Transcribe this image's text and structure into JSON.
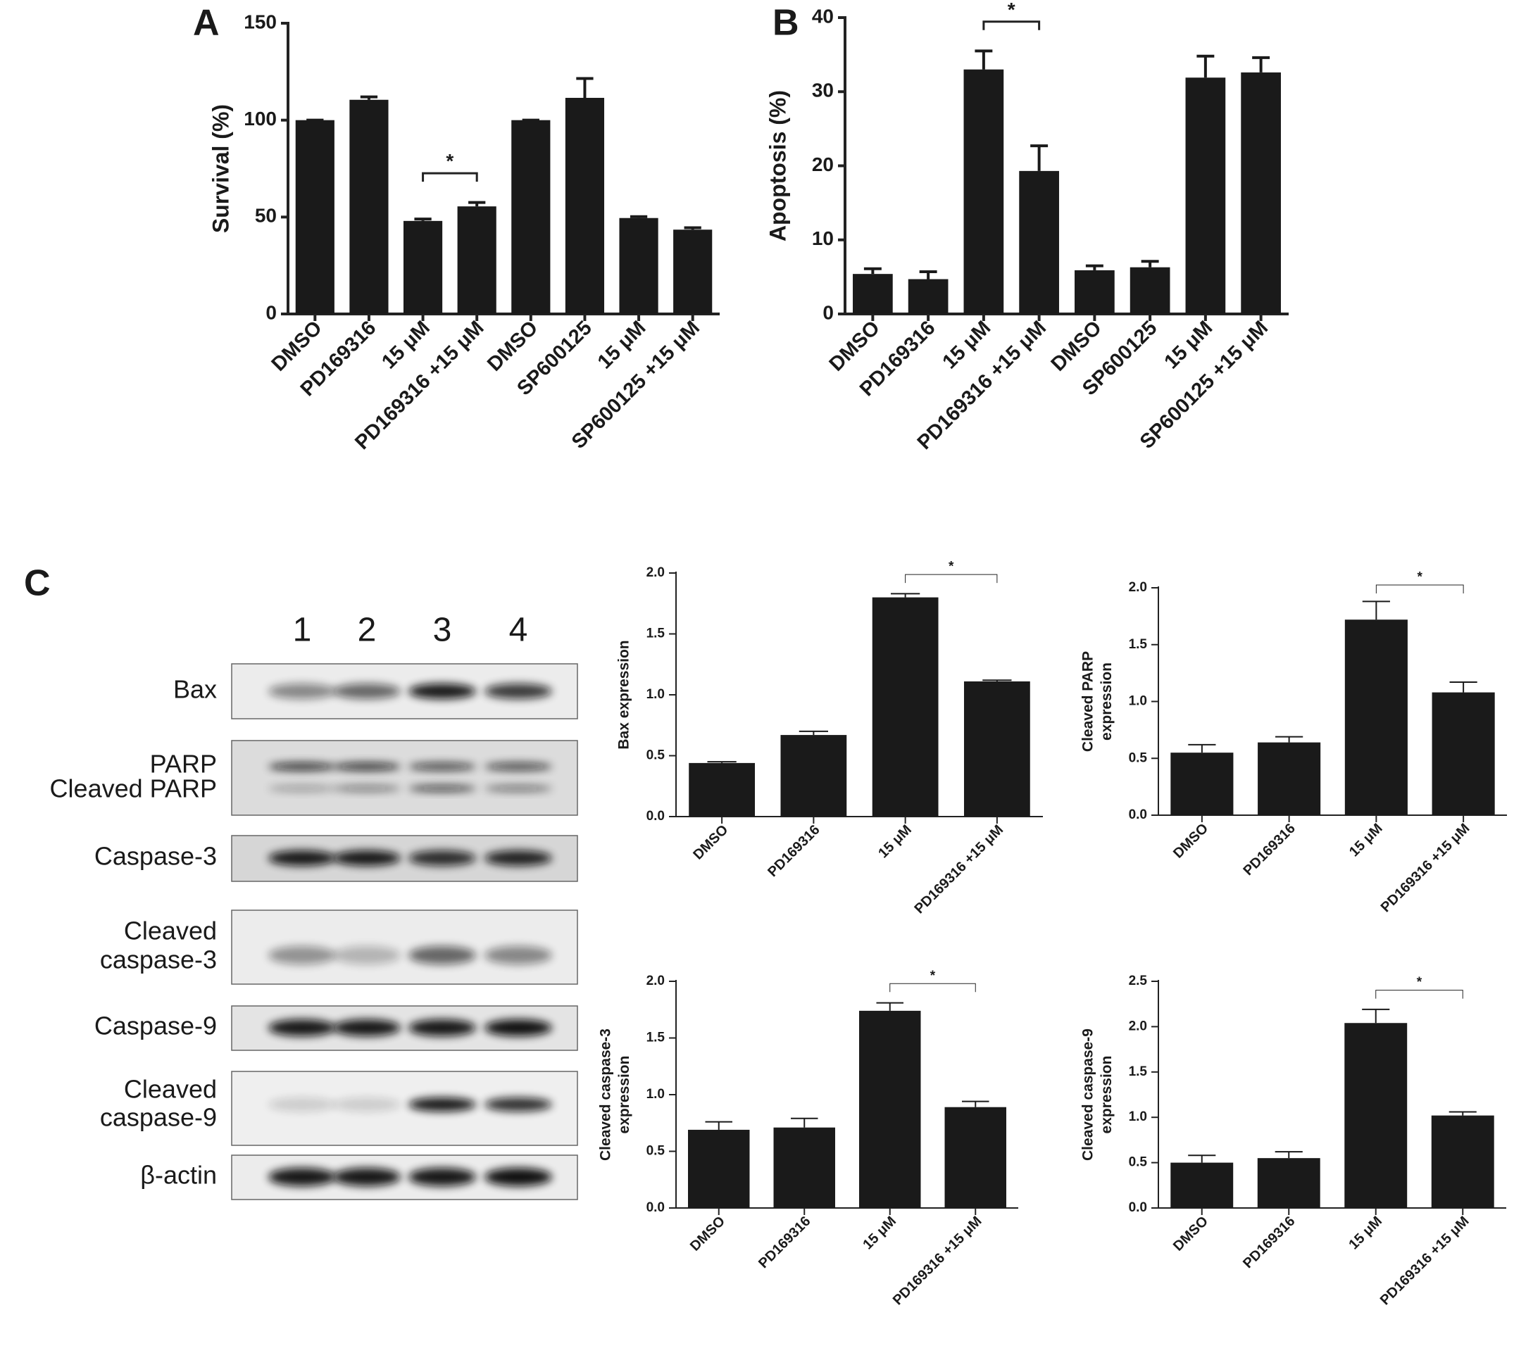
{
  "panel_labels": [
    "A",
    "B",
    "C"
  ],
  "blot": {
    "lanes": [
      "1",
      "2",
      "3",
      "4"
    ],
    "rows": [
      {
        "label": [
          "Bax"
        ]
      },
      {
        "label": [
          "PARP",
          "Cleaved PARP"
        ]
      },
      {
        "label": [
          "Caspase-3"
        ]
      },
      {
        "label": [
          "Cleaved",
          "caspase-3"
        ]
      },
      {
        "label": [
          "Caspase-9"
        ]
      },
      {
        "label": [
          "Cleaved",
          "caspase-9"
        ]
      },
      {
        "label": [
          "β-actin"
        ]
      }
    ]
  },
  "chart_data": [
    {
      "type": "bar",
      "ylabel": "Survival (%)",
      "color": "#1a1a1a",
      "categories": [
        "DMSO",
        "PD169316",
        "15 μM",
        "PD169316 +15 μM",
        "DMSO",
        "SP600125",
        "15 μM",
        "SP600125 +15 μM"
      ],
      "values": [
        100,
        110.5,
        48,
        55.5,
        100,
        111.5,
        49.5,
        43.5
      ],
      "errors": [
        0,
        1.5,
        1,
        2,
        0,
        10,
        0.7,
        1
      ],
      "ylim": [
        0,
        150
      ],
      "yticks": [
        0,
        50,
        100,
        150
      ],
      "annotation": {
        "text": "*",
        "between": [
          2,
          3
        ]
      }
    },
    {
      "type": "bar",
      "ylabel": "Apoptosis (%)",
      "color": "#1a1a1a",
      "categories": [
        "DMSO",
        "PD169316",
        "15 μM",
        "PD169316 +15 μM",
        "DMSO",
        "SP600125",
        "15 μM",
        "SP600125 +15 μM"
      ],
      "values": [
        5.4,
        4.7,
        33,
        19.3,
        5.9,
        6.3,
        31.9,
        32.6
      ],
      "errors": [
        0.7,
        1,
        2.5,
        3.4,
        0.6,
        0.8,
        2.9,
        2
      ],
      "ylim": [
        0,
        40
      ],
      "yticks": [
        0,
        10,
        20,
        30,
        40
      ],
      "annotation": {
        "text": "*",
        "between": [
          2,
          3
        ]
      }
    },
    {
      "type": "bar",
      "ylabel": [
        "Bax expression"
      ],
      "color": "#1a1a1a",
      "categories": [
        "DMSO",
        "PD169316",
        "15 μM",
        "PD169316 +15 μM"
      ],
      "values": [
        0.44,
        0.67,
        1.8,
        1.11
      ],
      "errors": [
        0.01,
        0.03,
        0.03,
        0.01
      ],
      "ylim": [
        0,
        2
      ],
      "yticks": [
        {
          "value": 0,
          "label": "0.0"
        },
        0.5,
        {
          "value": 1,
          "label": "1.0"
        },
        1.5,
        {
          "value": 2,
          "label": "2.0"
        }
      ],
      "annotation": {
        "text": "*",
        "between": [
          2,
          3
        ]
      }
    },
    {
      "type": "bar",
      "ylabel": [
        "Cleaved PARP",
        "expression"
      ],
      "color": "#1a1a1a",
      "categories": [
        "DMSO",
        "PD169316",
        "15 μM",
        "PD169316 +15 μM"
      ],
      "values": [
        0.55,
        0.64,
        1.72,
        1.08
      ],
      "errors": [
        0.07,
        0.05,
        0.16,
        0.09
      ],
      "ylim": [
        0,
        2
      ],
      "yticks": [
        {
          "value": 0,
          "label": "0.0"
        },
        0.5,
        {
          "value": 1,
          "label": "1.0"
        },
        1.5,
        {
          "value": 2,
          "label": "2.0"
        }
      ],
      "annotation": {
        "text": "*",
        "between": [
          2,
          3
        ]
      }
    },
    {
      "type": "bar",
      "ylabel": [
        "Cleaved caspase-3",
        "expression"
      ],
      "color": "#1a1a1a",
      "categories": [
        "DMSO",
        "PD169316",
        "15 μM",
        "PD169316 +15 μM"
      ],
      "values": [
        0.69,
        0.71,
        1.74,
        0.89
      ],
      "errors": [
        0.07,
        0.08,
        0.07,
        0.05
      ],
      "ylim": [
        0,
        2
      ],
      "yticks": [
        {
          "value": 0,
          "label": "0.0"
        },
        0.5,
        {
          "value": 1,
          "label": "1.0"
        },
        1.5,
        {
          "value": 2,
          "label": "2.0"
        }
      ],
      "annotation": {
        "text": "*",
        "between": [
          2,
          3
        ]
      }
    },
    {
      "type": "bar",
      "ylabel": [
        "Cleaved caspase-9",
        "expression"
      ],
      "color": "#1a1a1a",
      "categories": [
        "DMSO",
        "PD169316",
        "15 μM",
        "PD169316 +15 μM"
      ],
      "values": [
        0.5,
        0.55,
        2.04,
        1.02
      ],
      "errors": [
        0.08,
        0.07,
        0.15,
        0.04
      ],
      "ylim": [
        0,
        2.5
      ],
      "yticks": [
        {
          "value": 0,
          "label": "0.0"
        },
        0.5,
        {
          "value": 1,
          "label": "1.0"
        },
        1.5,
        {
          "value": 2,
          "label": "2.0"
        },
        2.5
      ],
      "annotation": {
        "text": "*",
        "between": [
          2,
          3
        ]
      }
    }
  ]
}
